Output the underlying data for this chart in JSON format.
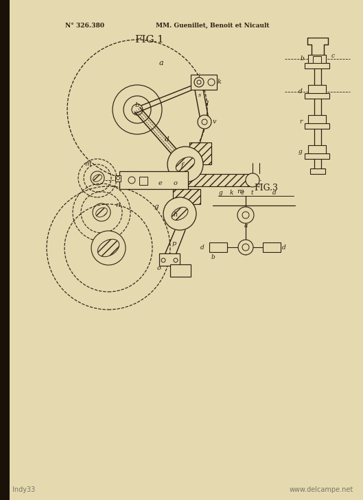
{
  "bg_color": "#e5d9b0",
  "line_color": "#2a2010",
  "title_top_left": "N° 326.380",
  "title_top_center": "MM. Guenillet, Benoit et Nicault",
  "fig1_label": "FIG.1",
  "fig3_label": "FIG.3",
  "watermark_left": "Indy33",
  "watermark_right": "www.delcampe.net",
  "left_dark_color": "#1a1208"
}
